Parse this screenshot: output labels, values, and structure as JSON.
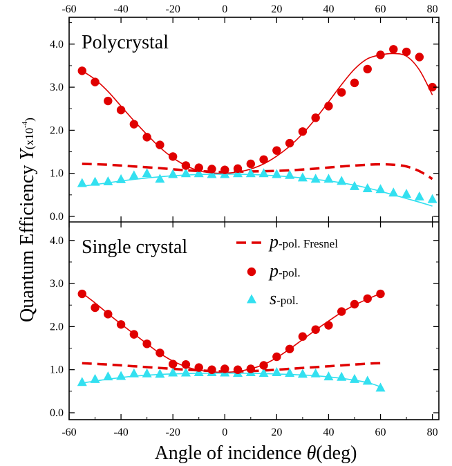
{
  "chart_data": [
    {
      "type": "scatter",
      "panel": "top",
      "title": "Polycrystal",
      "xlim": [
        -60,
        85
      ],
      "ylim": [
        -0.1,
        4.5
      ],
      "series": [
        {
          "name": "p-pol. Fresnel",
          "style": "dashed-line",
          "color": "#e00000",
          "x": [
            -55,
            -45,
            -35,
            -25,
            -15,
            -5,
            0,
            5,
            15,
            25,
            35,
            45,
            55,
            60,
            65,
            70,
            75,
            80
          ],
          "y": [
            1.22,
            1.2,
            1.16,
            1.12,
            1.07,
            1.04,
            1.03,
            1.04,
            1.05,
            1.07,
            1.11,
            1.16,
            1.2,
            1.21,
            1.2,
            1.16,
            1.05,
            0.87
          ]
        },
        {
          "name": "p-pol.",
          "style": "markers-circle",
          "color": "#e00000",
          "x": [
            -55,
            -50,
            -45,
            -40,
            -35,
            -30,
            -25,
            -20,
            -15,
            -10,
            -5,
            0,
            5,
            10,
            15,
            20,
            25,
            30,
            35,
            40,
            45,
            50,
            55,
            60,
            65,
            70,
            75,
            80
          ],
          "y": [
            3.38,
            3.12,
            2.68,
            2.47,
            2.14,
            1.84,
            1.66,
            1.39,
            1.18,
            1.13,
            1.1,
            1.08,
            1.11,
            1.22,
            1.32,
            1.53,
            1.7,
            1.97,
            2.29,
            2.56,
            2.88,
            3.1,
            3.42,
            3.75,
            3.88,
            3.82,
            3.7,
            3.0
          ]
        },
        {
          "name": "p-pol. fit",
          "style": "solid-line",
          "color": "#e00000",
          "x": [
            -55,
            -50,
            -45,
            -40,
            -35,
            -30,
            -25,
            -20,
            -15,
            -10,
            -5,
            0,
            5,
            10,
            15,
            20,
            25,
            30,
            35,
            40,
            45,
            50,
            55,
            60,
            65,
            70,
            75,
            80
          ],
          "y": [
            3.38,
            3.18,
            2.9,
            2.56,
            2.22,
            1.9,
            1.6,
            1.36,
            1.18,
            1.06,
            1.01,
            1.0,
            1.03,
            1.1,
            1.22,
            1.4,
            1.63,
            1.92,
            2.27,
            2.66,
            3.06,
            3.42,
            3.66,
            3.75,
            3.78,
            3.72,
            3.4,
            2.82
          ]
        },
        {
          "name": "s-pol.",
          "style": "markers-triangle",
          "color": "#33e0f0",
          "x": [
            -55,
            -50,
            -45,
            -40,
            -35,
            -30,
            -25,
            -20,
            -15,
            -10,
            -5,
            0,
            5,
            10,
            15,
            20,
            25,
            30,
            35,
            40,
            45,
            50,
            55,
            60,
            65,
            70,
            75,
            80
          ],
          "y": [
            0.77,
            0.8,
            0.81,
            0.86,
            0.95,
            1.0,
            0.87,
            0.98,
            1.0,
            1.0,
            0.98,
            0.98,
            1.0,
            1.0,
            1.0,
            0.98,
            0.96,
            0.9,
            0.87,
            0.87,
            0.82,
            0.7,
            0.65,
            0.63,
            0.55,
            0.52,
            0.46,
            0.4
          ]
        },
        {
          "name": "s-pol. fit",
          "style": "solid-line",
          "color": "#33e0f0",
          "x": [
            -55,
            -45,
            -35,
            -25,
            -15,
            -5,
            0,
            5,
            15,
            25,
            35,
            45,
            55,
            65,
            75,
            80
          ],
          "y": [
            0.7,
            0.78,
            0.86,
            0.92,
            0.96,
            0.98,
            0.98,
            0.98,
            0.96,
            0.92,
            0.86,
            0.78,
            0.66,
            0.5,
            0.33,
            0.24
          ]
        }
      ]
    },
    {
      "type": "scatter",
      "panel": "bottom",
      "title": "Single crystal",
      "xlim": [
        -60,
        85
      ],
      "ylim": [
        -0.1,
        4.5
      ],
      "legend": {
        "position": "top-right",
        "entries": [
          {
            "main": "p",
            "suffix": "-pol. Fresnel",
            "style": "dashed-line",
            "color": "#e00000"
          },
          {
            "main": "p",
            "suffix": "-pol.",
            "style": "markers-circle",
            "color": "#e00000"
          },
          {
            "main": "s",
            "suffix": "-pol.",
            "style": "markers-triangle",
            "color": "#33e0f0"
          }
        ]
      },
      "series": [
        {
          "name": "p-pol. Fresnel",
          "style": "dashed-line",
          "color": "#e00000",
          "x": [
            -55,
            -45,
            -35,
            -25,
            -15,
            -5,
            0,
            5,
            15,
            25,
            35,
            45,
            55,
            60
          ],
          "y": [
            1.15,
            1.12,
            1.08,
            1.04,
            1.0,
            0.97,
            0.96,
            0.96,
            0.98,
            1.02,
            1.06,
            1.1,
            1.14,
            1.15
          ]
        },
        {
          "name": "p-pol.",
          "style": "markers-circle",
          "color": "#e00000",
          "x": [
            -55,
            -50,
            -45,
            -40,
            -35,
            -30,
            -25,
            -20,
            -15,
            -10,
            -5,
            0,
            5,
            10,
            15,
            20,
            25,
            30,
            35,
            40,
            45,
            50,
            55,
            60
          ],
          "y": [
            2.76,
            2.44,
            2.29,
            2.05,
            1.82,
            1.6,
            1.39,
            1.13,
            1.12,
            1.05,
            1.0,
            1.02,
            1.0,
            1.02,
            1.1,
            1.3,
            1.48,
            1.77,
            1.93,
            2.03,
            2.35,
            2.52,
            2.65,
            2.76
          ]
        },
        {
          "name": "p-pol. fit",
          "style": "solid-line",
          "color": "#e00000",
          "x": [
            -55,
            -50,
            -45,
            -40,
            -35,
            -30,
            -25,
            -20,
            -15,
            -10,
            -5,
            0,
            5,
            10,
            15,
            20,
            25,
            30,
            35,
            40,
            45,
            50,
            55,
            60
          ],
          "y": [
            2.78,
            2.55,
            2.3,
            2.06,
            1.83,
            1.6,
            1.38,
            1.2,
            1.07,
            0.99,
            0.95,
            0.94,
            0.96,
            1.02,
            1.12,
            1.28,
            1.48,
            1.7,
            1.92,
            2.13,
            2.33,
            2.5,
            2.64,
            2.77
          ]
        },
        {
          "name": "s-pol.",
          "style": "markers-triangle",
          "color": "#33e0f0",
          "x": [
            -55,
            -50,
            -45,
            -40,
            -35,
            -30,
            -25,
            -20,
            -15,
            -10,
            -5,
            0,
            5,
            10,
            15,
            20,
            25,
            30,
            35,
            40,
            45,
            50,
            55,
            60
          ],
          "y": [
            0.71,
            0.78,
            0.84,
            0.85,
            0.91,
            0.91,
            0.9,
            0.93,
            0.93,
            0.94,
            0.94,
            0.93,
            0.92,
            0.94,
            0.92,
            0.94,
            0.92,
            0.9,
            0.91,
            0.84,
            0.83,
            0.78,
            0.74,
            0.58
          ]
        },
        {
          "name": "s-pol. fit",
          "style": "solid-line",
          "color": "#33e0f0",
          "x": [
            -55,
            -45,
            -35,
            -25,
            -15,
            -5,
            0,
            5,
            15,
            25,
            35,
            45,
            55,
            60
          ],
          "y": [
            0.69,
            0.78,
            0.85,
            0.89,
            0.91,
            0.92,
            0.92,
            0.92,
            0.91,
            0.89,
            0.86,
            0.8,
            0.7,
            0.6
          ]
        }
      ]
    }
  ],
  "axes": {
    "x_ticks": [
      "-60",
      "-40",
      "-20",
      "0",
      "20",
      "40",
      "60",
      "80"
    ],
    "x_tick_values": [
      -60,
      -40,
      -20,
      0,
      20,
      40,
      60,
      80
    ],
    "y_ticks": [
      "0.0",
      "1.0",
      "2.0",
      "3.0",
      "4.0"
    ],
    "y_tick_values": [
      0,
      1,
      2,
      3,
      4
    ],
    "xlabel_main": "Angle of incidence ",
    "xlabel_symbol": "θ",
    "xlabel_unit": "(deg)",
    "ylabel_main": "Quantum Efficiency ",
    "ylabel_symbol": "Y",
    "ylabel_unit_base": "(x10",
    "ylabel_unit_exp": "-4",
    "ylabel_unit_close": ")"
  }
}
